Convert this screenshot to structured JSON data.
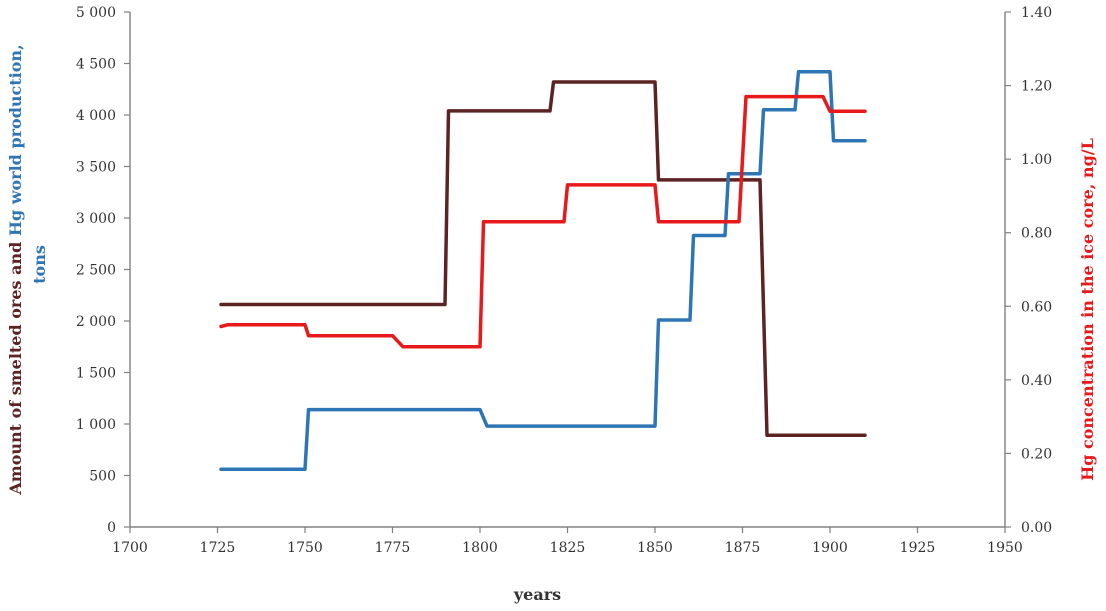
{
  "chart_data": {
    "type": "line",
    "title": "",
    "xlabel": "years",
    "ylabel_left": {
      "parts": [
        {
          "text": "Amount of smelted ores and ",
          "color": "#5c2323"
        },
        {
          "text": "Hg world production,",
          "color": "#2e75b6"
        }
      ],
      "line2": {
        "text": "tons",
        "color": "#2e75b6"
      }
    },
    "ylabel_right": "Hg concentration in the ice core, ng/L",
    "xlim": [
      1700,
      1950
    ],
    "ylim_left": [
      0,
      5000
    ],
    "ylim_right": [
      0,
      1.4
    ],
    "x_ticks": [
      1700,
      1725,
      1750,
      1775,
      1800,
      1825,
      1850,
      1875,
      1900,
      1925,
      1950
    ],
    "x_tick_labels": [
      "1700",
      "1725",
      "1750",
      "1775",
      "1800",
      "1825",
      "1850",
      "1875",
      "1900",
      "1925",
      "1950"
    ],
    "y_left_ticks": [
      0,
      500,
      1000,
      1500,
      2000,
      2500,
      3000,
      3500,
      4000,
      4500,
      5000
    ],
    "y_left_tick_labels": [
      "0",
      "500",
      "1 000",
      "1 500",
      "2 000",
      "2 500",
      "3 000",
      "3 500",
      "4 000",
      "4 500",
      "5 000"
    ],
    "y_right_ticks": [
      0,
      0.2,
      0.4,
      0.6,
      0.8,
      1.0,
      1.2,
      1.4
    ],
    "y_right_tick_labels": [
      "0.00",
      "0.20",
      "0.40",
      "0.60",
      "0.80",
      "1.00",
      "1.20",
      "1.40"
    ],
    "grid": false,
    "legend": "none",
    "series": [
      {
        "axis": "left",
        "color": "#5c2323",
        "points": [
          [
            1726,
            2160
          ],
          [
            1790,
            2160
          ],
          [
            1791,
            4040
          ],
          [
            1820,
            4040
          ],
          [
            1821,
            4320
          ],
          [
            1850,
            4320
          ],
          [
            1851,
            3370
          ],
          [
            1880,
            3370
          ],
          [
            1882,
            890
          ],
          [
            1910,
            890
          ]
        ]
      },
      {
        "axis": "left",
        "color": "#2e75b6",
        "points": [
          [
            1726,
            560
          ],
          [
            1750,
            560
          ],
          [
            1751,
            1140
          ],
          [
            1800,
            1140
          ],
          [
            1802,
            980
          ],
          [
            1850,
            980
          ],
          [
            1851,
            2010
          ],
          [
            1860,
            2010
          ],
          [
            1861,
            2830
          ],
          [
            1870,
            2830
          ],
          [
            1871,
            3430
          ],
          [
            1880,
            3430
          ],
          [
            1881,
            4050
          ],
          [
            1890,
            4050
          ],
          [
            1891,
            4420
          ],
          [
            1900,
            4420
          ],
          [
            1901,
            3750
          ],
          [
            1910,
            3750
          ]
        ]
      },
      {
        "axis": "right",
        "color": "#e8191b",
        "points": [
          [
            1726,
            0.545
          ],
          [
            1728,
            0.55
          ],
          [
            1750,
            0.55
          ],
          [
            1751,
            0.52
          ],
          [
            1775,
            0.52
          ],
          [
            1778,
            0.49
          ],
          [
            1800,
            0.49
          ],
          [
            1801,
            0.83
          ],
          [
            1824,
            0.83
          ],
          [
            1825,
            0.93
          ],
          [
            1850,
            0.93
          ],
          [
            1851,
            0.83
          ],
          [
            1874,
            0.83
          ],
          [
            1876,
            1.17
          ],
          [
            1898,
            1.17
          ],
          [
            1900,
            1.13
          ],
          [
            1910,
            1.13
          ]
        ]
      }
    ]
  }
}
